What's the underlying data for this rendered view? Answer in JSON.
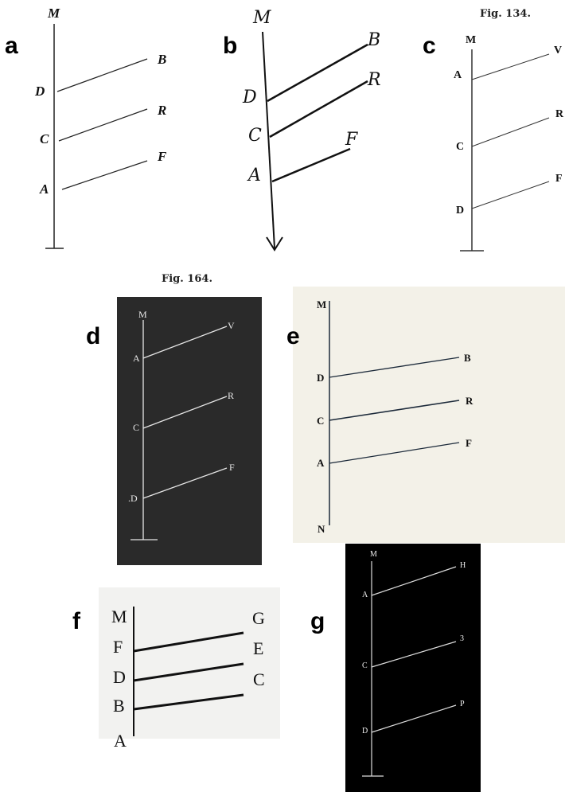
{
  "panels": {
    "a": {
      "label": "a",
      "letters": {
        "M": "M",
        "D": "D",
        "C": "C",
        "A": "A",
        "B": "B",
        "R": "R",
        "F": "F"
      }
    },
    "b": {
      "label": "b",
      "letters": {
        "M": "M",
        "D": "D",
        "C": "C",
        "A": "A",
        "B": "B",
        "R": "R",
        "F": "F"
      }
    },
    "c": {
      "label": "c",
      "title": "Fig. 134.",
      "letters": {
        "M": "M",
        "A": "A",
        "C": "C",
        "D": "D",
        "V": "V",
        "R": "R",
        "F": "F"
      }
    },
    "d": {
      "label": "d",
      "title": "Fig. 164.",
      "letters": {
        "M": "M",
        "A": "A",
        "C": "C",
        "D": ".D",
        "V": "V",
        "R": "R",
        "F": "F"
      }
    },
    "e": {
      "label": "e",
      "letters": {
        "M": "M",
        "D": "D",
        "C": "C",
        "A": "A",
        "N": "N",
        "B": "B",
        "R": "R",
        "F": "F"
      }
    },
    "f": {
      "label": "f",
      "letters": {
        "M": "M",
        "F": "F",
        "D": "D",
        "B": "B",
        "A": "A",
        "G": "G",
        "E": "E",
        "C": "C"
      }
    },
    "g": {
      "label": "g",
      "letters": {
        "M": "M",
        "A": "A",
        "C": "C",
        "D": "D",
        "H": "H",
        "Z": "3",
        "P": "P"
      }
    }
  }
}
